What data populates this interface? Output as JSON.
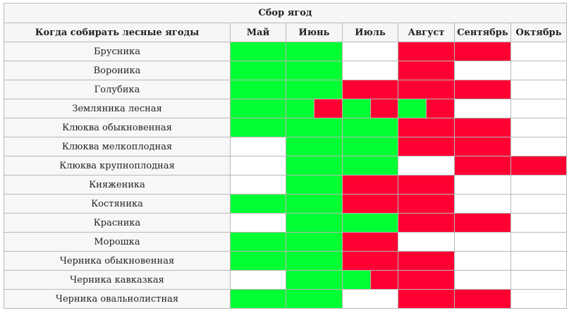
{
  "title": "Сбор ягод",
  "first_column_header": "Когда собирать лесные ягоды",
  "months": [
    "Май",
    "Июнь",
    "Июль",
    "Август",
    "Сентябрь",
    "Октябрь"
  ],
  "legend_colors": {
    "g": "#00ff33",
    "r": "#ff0033",
    "w": "#ffffff"
  },
  "rows": [
    {
      "name": "Брусника",
      "cells": [
        [
          "g"
        ],
        [
          "g"
        ],
        [
          "w"
        ],
        [
          "r"
        ],
        [
          "r"
        ],
        [
          "w"
        ]
      ]
    },
    {
      "name": "Вороника",
      "cells": [
        [
          "g"
        ],
        [
          "g"
        ],
        [
          "w"
        ],
        [
          "r"
        ],
        [
          "w"
        ],
        [
          "w"
        ]
      ]
    },
    {
      "name": "Голубика",
      "cells": [
        [
          "g"
        ],
        [
          "g"
        ],
        [
          "r"
        ],
        [
          "r"
        ],
        [
          "r"
        ],
        [
          "w"
        ]
      ]
    },
    {
      "name": "Земляника лесная",
      "cells": [
        [
          "g"
        ],
        [
          "g",
          "r"
        ],
        [
          "g",
          "r"
        ],
        [
          "g",
          "r"
        ],
        [
          "w"
        ],
        [
          "w"
        ]
      ]
    },
    {
      "name": "Клюква обыкновенная",
      "cells": [
        [
          "g"
        ],
        [
          "g"
        ],
        [
          "g"
        ],
        [
          "r"
        ],
        [
          "r"
        ],
        [
          "w"
        ]
      ]
    },
    {
      "name": "Клюква мелкоплодная",
      "cells": [
        [
          "w"
        ],
        [
          "g"
        ],
        [
          "g"
        ],
        [
          "r"
        ],
        [
          "r"
        ],
        [
          "w"
        ]
      ]
    },
    {
      "name": "Клюква крупноплодная",
      "cells": [
        [
          "w"
        ],
        [
          "g"
        ],
        [
          "g"
        ],
        [
          "w"
        ],
        [
          "r"
        ],
        [
          "r"
        ]
      ]
    },
    {
      "name": "Княженика",
      "cells": [
        [
          "w"
        ],
        [
          "g"
        ],
        [
          "r"
        ],
        [
          "r"
        ],
        [
          "w"
        ],
        [
          "w"
        ]
      ]
    },
    {
      "name": "Костяника",
      "cells": [
        [
          "g"
        ],
        [
          "g"
        ],
        [
          "r"
        ],
        [
          "r"
        ],
        [
          "w"
        ],
        [
          "w"
        ]
      ]
    },
    {
      "name": "Красника",
      "cells": [
        [
          "w"
        ],
        [
          "g"
        ],
        [
          "g"
        ],
        [
          "r"
        ],
        [
          "r"
        ],
        [
          "w"
        ]
      ]
    },
    {
      "name": "Морошка",
      "cells": [
        [
          "g"
        ],
        [
          "g"
        ],
        [
          "r"
        ],
        [
          "w"
        ],
        [
          "w"
        ],
        [
          "w"
        ]
      ]
    },
    {
      "name": "Черника обыкновенная",
      "cells": [
        [
          "g"
        ],
        [
          "g"
        ],
        [
          "r"
        ],
        [
          "r"
        ],
        [
          "w"
        ],
        [
          "w"
        ]
      ]
    },
    {
      "name": "Черника кавказкая",
      "cells": [
        [
          "w"
        ],
        [
          "g"
        ],
        [
          "g",
          "r"
        ],
        [
          "r"
        ],
        [
          "w"
        ],
        [
          "w"
        ]
      ]
    },
    {
      "name": "Черника овальнолистная",
      "cells": [
        [
          "g"
        ],
        [
          "g"
        ],
        [
          "w"
        ],
        [
          "r"
        ],
        [
          "r"
        ],
        [
          "w"
        ]
      ]
    }
  ]
}
